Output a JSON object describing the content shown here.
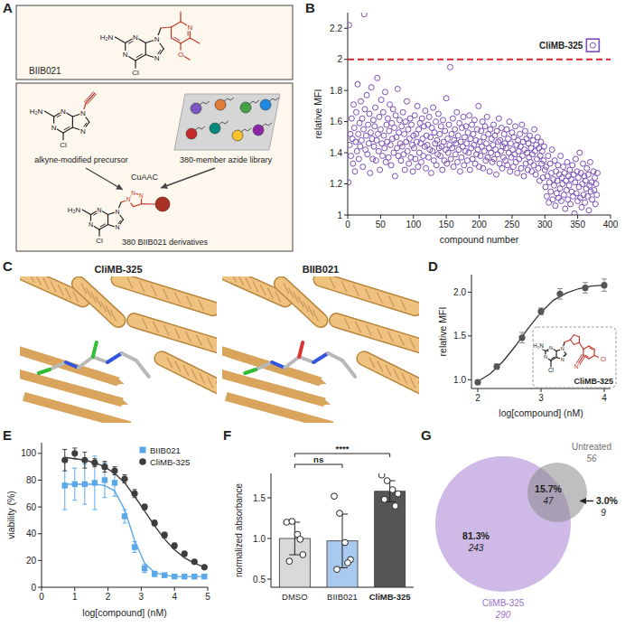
{
  "panel_a": {
    "panel": "A",
    "top_compound": "BIIB021",
    "precursor": "alkyne-modified precursor",
    "reaction": "CuAAC",
    "library": "380-member azide library",
    "products": "380 BIIB021 derivatives",
    "atoms": {
      "amine": "H₂N",
      "nitrogen": "N",
      "chlorine": "Cl",
      "oxygen": "O"
    }
  },
  "panel_c": {
    "panel": "C",
    "images": [
      "CliMB-325",
      "BIIB021"
    ]
  },
  "chart_data": [
    {
      "panel": "B",
      "type": "scatter",
      "x_label": "compound number",
      "y_label": "relative MFI",
      "color": "#7b4fb5",
      "marker": "circle",
      "x": [
        1,
        2,
        3,
        4,
        5,
        6,
        7,
        8,
        9,
        10,
        11,
        12,
        13,
        14,
        15,
        16,
        17,
        18,
        19,
        20,
        21,
        22,
        23,
        24,
        25,
        26,
        27,
        28,
        29,
        30,
        31,
        32,
        33,
        34,
        35,
        36,
        37,
        38,
        39,
        40,
        41,
        42,
        43,
        44,
        45,
        46,
        47,
        48,
        49,
        50,
        51,
        52,
        53,
        54,
        55,
        56,
        57,
        58,
        59,
        60,
        61,
        62,
        63,
        64,
        65,
        66,
        67,
        68,
        69,
        70,
        71,
        72,
        73,
        74,
        75,
        76,
        77,
        78,
        79,
        80,
        81,
        82,
        83,
        84,
        85,
        86,
        87,
        88,
        89,
        90,
        91,
        92,
        93,
        94,
        95,
        96,
        97,
        98,
        99,
        100,
        101,
        102,
        103,
        104,
        105,
        106,
        107,
        108,
        109,
        110,
        111,
        112,
        113,
        114,
        115,
        116,
        117,
        118,
        119,
        120,
        121,
        122,
        123,
        124,
        125,
        126,
        127,
        128,
        129,
        130,
        131,
        132,
        133,
        134,
        135,
        136,
        137,
        138,
        139,
        140,
        141,
        142,
        143,
        144,
        145,
        146,
        147,
        148,
        149,
        150,
        151,
        152,
        153,
        154,
        155,
        156,
        157,
        158,
        159,
        160,
        161,
        162,
        163,
        164,
        165,
        166,
        167,
        168,
        169,
        170,
        171,
        172,
        173,
        174,
        175,
        176,
        177,
        178,
        179,
        180,
        181,
        182,
        183,
        184,
        185,
        186,
        187,
        188,
        189,
        190,
        191,
        192,
        193,
        194,
        195,
        196,
        197,
        198,
        199,
        200,
        201,
        202,
        203,
        204,
        205,
        206,
        207,
        208,
        209,
        210,
        211,
        212,
        213,
        214,
        215,
        216,
        217,
        218,
        219,
        220,
        221,
        222,
        223,
        224,
        225,
        226,
        227,
        228,
        229,
        230,
        231,
        232,
        233,
        234,
        235,
        236,
        237,
        238,
        239,
        240,
        241,
        242,
        243,
        244,
        245,
        246,
        247,
        248,
        249,
        250,
        251,
        252,
        253,
        254,
        255,
        256,
        257,
        258,
        259,
        260,
        261,
        262,
        263,
        264,
        265,
        266,
        267,
        268,
        269,
        270,
        271,
        272,
        273,
        274,
        275,
        276,
        277,
        278,
        279,
        280,
        281,
        282,
        283,
        284,
        285,
        286,
        287,
        288,
        289,
        290,
        291,
        292,
        293,
        294,
        295,
        296,
        297,
        298,
        299,
        300,
        301,
        302,
        303,
        304,
        305,
        306,
        307,
        308,
        309,
        310,
        311,
        312,
        313,
        314,
        315,
        316,
        317,
        318,
        319,
        320,
        321,
        322,
        323,
        324,
        325,
        326,
        327,
        328,
        329,
        330,
        331,
        332,
        333,
        334,
        335,
        336,
        337,
        338,
        339,
        340,
        341,
        342,
        343,
        344,
        345,
        346,
        347,
        348,
        349,
        350,
        351,
        352,
        353,
        354,
        355,
        356,
        357,
        358,
        359,
        360,
        361,
        362,
        363,
        364,
        365,
        366,
        367,
        368,
        369,
        370,
        371,
        372,
        373,
        374,
        375,
        376,
        377,
        378,
        379,
        380
      ],
      "values": [
        1.21,
        2.22,
        1.45,
        1.52,
        1.38,
        1.62,
        1.49,
        1.33,
        1.71,
        1.56,
        1.28,
        1.47,
        1.66,
        1.41,
        1.84,
        1.52,
        1.36,
        1.59,
        1.44,
        1.73,
        1.48,
        1.62,
        1.31,
        1.55,
        2.29,
        1.68,
        1.42,
        1.51,
        1.77,
        1.39,
        1.58,
        1.46,
        1.65,
        1.27,
        1.53,
        1.82,
        1.49,
        1.36,
        1.61,
        1.44,
        1.57,
        1.69,
        1.35,
        1.48,
        1.88,
        1.52,
        1.41,
        1.63,
        1.29,
        1.55,
        1.74,
        1.46,
        1.38,
        1.66,
        1.51,
        1.43,
        1.79,
        1.34,
        1.58,
        1.47,
        1.62,
        1.37,
        1.54,
        1.71,
        1.45,
        1.32,
        1.59,
        1.49,
        1.68,
        1.4,
        1.56,
        1.25,
        1.64,
        1.5,
        1.43,
        1.81,
        1.38,
        1.53,
        1.61,
        1.46,
        1.35,
        1.57,
        1.44,
        1.66,
        1.39,
        1.52,
        1.29,
        1.6,
        1.47,
        1.73,
        1.41,
        1.55,
        1.33,
        1.49,
        1.62,
        1.37,
        1.58,
        1.45,
        1.28,
        1.51,
        1.43,
        1.64,
        1.36,
        1.52,
        1.47,
        1.7,
        1.31,
        1.55,
        1.4,
        1.59,
        1.46,
        1.34,
        1.62,
        1.49,
        1.38,
        1.57,
        1.44,
        1.67,
        1.3,
        1.51,
        1.45,
        1.58,
        1.37,
        1.63,
        1.42,
        1.5,
        1.27,
        1.56,
        1.41,
        1.69,
        1.35,
        1.53,
        1.46,
        1.6,
        1.32,
        1.48,
        1.39,
        1.65,
        1.43,
        1.52,
        1.38,
        1.57,
        1.44,
        1.29,
        1.61,
        1.47,
        1.35,
        1.54,
        1.42,
        1.75,
        1.33,
        1.49,
        1.4,
        1.58,
        1.45,
        1.95,
        1.36,
        1.52,
        1.43,
        1.62,
        1.31,
        1.48,
        1.55,
        1.39,
        1.46,
        1.66,
        1.34,
        1.51,
        1.42,
        1.59,
        1.28,
        1.47,
        1.37,
        1.56,
        1.44,
        1.63,
        1.32,
        1.5,
        1.41,
        1.57,
        1.46,
        1.35,
        1.53,
        1.4,
        1.64,
        1.29,
        1.49,
        1.43,
        1.58,
        1.36,
        1.52,
        1.45,
        1.61,
        1.33,
        1.48,
        1.39,
        1.55,
        1.42,
        1.7,
        1.31,
        1.47,
        1.38,
        1.54,
        1.44,
        1.6,
        1.3,
        1.5,
        1.41,
        1.57,
        1.35,
        1.46,
        1.63,
        1.37,
        1.52,
        1.43,
        1.28,
        1.55,
        1.4,
        1.49,
        1.34,
        1.45,
        1.58,
        1.36,
        1.51,
        1.42,
        1.26,
        1.54,
        1.39,
        1.47,
        1.62,
        1.33,
        1.48,
        1.41,
        1.56,
        1.3,
        1.44,
        1.37,
        1.52,
        1.46,
        1.35,
        1.43,
        1.55,
        1.32,
        1.49,
        1.4,
        1.6,
        1.28,
        1.46,
        1.37,
        1.53,
        1.42,
        1.31,
        1.5,
        1.39,
        1.57,
        1.34,
        1.45,
        1.27,
        1.48,
        1.41,
        1.36,
        1.52,
        1.44,
        1.3,
        1.58,
        1.38,
        1.47,
        1.25,
        1.42,
        1.54,
        1.33,
        1.49,
        1.4,
        1.29,
        1.46,
        1.37,
        1.51,
        1.34,
        1.43,
        1.28,
        1.39,
        1.48,
        1.32,
        1.55,
        1.41,
        1.26,
        1.45,
        1.36,
        1.5,
        1.3,
        1.43,
        1.22,
        1.38,
        1.47,
        1.33,
        1.41,
        1.24,
        1.35,
        1.44,
        1.29,
        1.18,
        1.31,
        1.12,
        1.25,
        1.38,
        1.08,
        1.21,
        1.33,
        1.15,
        1.27,
        1.42,
        1.1,
        1.23,
        1.19,
        1.35,
        1.06,
        1.28,
        1.14,
        1.22,
        1.32,
        1.11,
        1.26,
        1.17,
        1.38,
        1.09,
        1.24,
        1.2,
        1.31,
        1.13,
        1.27,
        1.04,
        1.22,
        1.16,
        1.34,
        1.1,
        1.25,
        1.19,
        1.29,
        1.07,
        1.23,
        1.15,
        1.32,
        1.12,
        1.26,
        1.01,
        1.21,
        1.36,
        1.14,
        1.28,
        1.09,
        1.24,
        1.18,
        1.4,
        1.11,
        1.27,
        1.05,
        1.2,
        1.33,
        1.13,
        1.25,
        1.08,
        1.22,
        1.17,
        1.3,
        1.12,
        1.26,
        1.03,
        1.19,
        1.34,
        1.15,
        1.21,
        1.1,
        2.09,
        1.28,
        1.16,
        1.24,
        1.07,
        1.2,
        1.13,
        1.27
      ],
      "xlim": [
        0,
        400
      ],
      "xticks": [
        0,
        50,
        100,
        150,
        200,
        250,
        300,
        350,
        400
      ],
      "ylim": [
        1,
        2.3
      ],
      "yticks": [
        1,
        1.2,
        1.4,
        1.6,
        1.8,
        2,
        2.2
      ],
      "threshold": {
        "value": 2,
        "color": "#d62728",
        "line_style": "dashed"
      },
      "annotations": [
        {
          "text": "CliMB-325",
          "x": 373,
          "y": 2.09
        }
      ]
    },
    {
      "panel": "D",
      "type": "scatter",
      "x_label": "log[compound] (nM)",
      "y_label": "relative MFI",
      "color": "#555555",
      "marker": "circle",
      "x": [
        2,
        2.3,
        2.7,
        3,
        3.3,
        3.7,
        4
      ],
      "values": [
        0.97,
        1.15,
        1.48,
        1.78,
        1.98,
        2.05,
        2.08
      ],
      "errors": [
        0.02,
        0.03,
        0.06,
        0.04,
        0.06,
        0.06,
        0.07
      ],
      "fit": {
        "x": [
          2,
          2.2,
          2.4,
          2.6,
          2.8,
          3,
          3.2,
          3.4,
          3.6,
          3.8,
          4
        ],
        "values": [
          0.98,
          1.07,
          1.21,
          1.39,
          1.59,
          1.77,
          1.91,
          1.99,
          2.04,
          2.07,
          2.08
        ]
      },
      "xlim": [
        1.9,
        4.1
      ],
      "xticks": [
        2,
        3,
        4
      ],
      "ylim": [
        0.9,
        2.2
      ],
      "yticks": [
        {
          "value": 1,
          "label": "1.0"
        },
        1.5,
        {
          "value": 2,
          "label": "2.0"
        }
      ],
      "inset_label": "CliMB-325"
    },
    {
      "panel": "E",
      "type": "scatter",
      "x_label": "log[compound] (nM)",
      "y_label": "viability (%)",
      "x": [
        0.7,
        1,
        1.3,
        1.6,
        1.9,
        2.2,
        2.5,
        2.8,
        3.1,
        3.4,
        3.7,
        4,
        4.3,
        4.6,
        4.9
      ],
      "series": [
        {
          "name": "BIIB021",
          "color": "#5ba8e8",
          "marker": "square",
          "values": [
            76,
            77,
            77,
            78,
            80,
            78,
            53,
            30,
            14,
            10,
            9,
            8,
            8,
            8,
            8
          ],
          "errors": [
            18,
            12,
            15,
            20,
            13,
            10,
            5,
            4,
            3,
            2,
            1,
            1,
            1,
            1,
            1
          ],
          "fit": [
            77,
            77,
            77,
            77,
            76,
            72,
            58,
            35,
            18,
            11,
            9,
            8,
            8,
            8,
            8
          ]
        },
        {
          "name": "CliMB-325",
          "color": "#3d3d3d",
          "marker": "circle",
          "values": [
            95,
            100,
            95,
            93,
            90,
            87,
            81,
            70,
            60,
            48,
            39,
            31,
            25,
            19,
            15
          ],
          "errors": [
            8,
            4,
            6,
            3,
            4,
            3,
            3,
            3,
            2,
            2,
            2,
            2,
            1,
            1,
            1
          ],
          "fit": [
            97,
            96,
            95,
            93,
            90,
            85,
            78,
            68,
            57,
            46,
            36,
            28,
            22,
            18,
            15
          ]
        }
      ],
      "xlim": [
        0,
        5
      ],
      "xticks": [
        0,
        1,
        2,
        3,
        4,
        5
      ],
      "ylim": [
        0,
        108
      ],
      "yticks": [
        0,
        20,
        40,
        60,
        80,
        100
      ],
      "legend": "top-right"
    },
    {
      "panel": "F",
      "type": "bar",
      "y_label": "normalized absorbance",
      "categories": [
        "DMSO",
        "BIIB021",
        "CliMB-325"
      ],
      "values": [
        1.0,
        0.97,
        1.58
      ],
      "errors": [
        0.2,
        0.33,
        0.13
      ],
      "points": [
        [
          1.2,
          1.21,
          1.05,
          0.8,
          0.72,
          0.99
        ],
        [
          1.52,
          1.31,
          0.95,
          0.74,
          0.62,
          0.7
        ],
        [
          1.78,
          1.71,
          1.6,
          1.55,
          1.48,
          1.4
        ]
      ],
      "colors": [
        "#d9d9d9",
        "#a9c9ef",
        "#555555"
      ],
      "ylim": [
        0.4,
        1.8
      ],
      "yticks": [
        0.5,
        {
          "value": 1,
          "label": "1.0"
        },
        1.5
      ],
      "significance": [
        {
          "text": "ns",
          "from": 0,
          "to": 1
        },
        {
          "text": "****",
          "from": 0,
          "to": 2
        }
      ]
    },
    {
      "panel": "G",
      "type": "venn",
      "sets": [
        {
          "name": "CliMB-325",
          "size": 290,
          "color": "#cbb5e6"
        },
        {
          "name": "Untreated",
          "size": 56,
          "color": "#8a8a8a"
        }
      ],
      "regions": [
        {
          "sets": [
            0
          ],
          "percent": {
            "value": 81.3,
            "label": "81.3%"
          },
          "count": 243
        },
        {
          "sets": [
            0,
            1
          ],
          "percent": {
            "value": 15.7,
            "label": "15.7%"
          },
          "count": 47
        },
        {
          "sets": [
            1
          ],
          "percent": {
            "value": 3.0,
            "label": "3.0%"
          },
          "count": 9
        }
      ]
    }
  ]
}
